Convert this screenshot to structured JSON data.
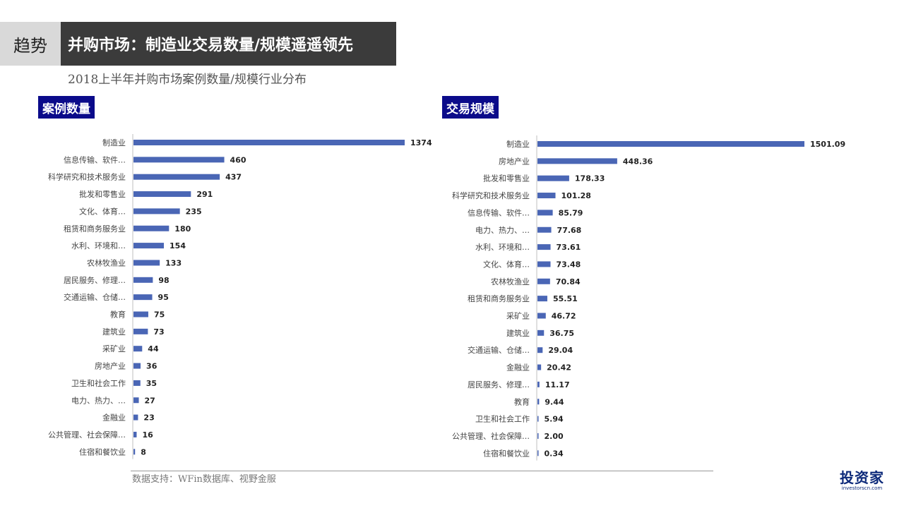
{
  "header": {
    "tag": "趋势",
    "title": "并购市场：制造业交易数量/规模遥遥领先",
    "subtitle": "2018上半年并购市场案例数量/规模行业分布"
  },
  "footer": {
    "source": "数据支持：WFin数据库、视野金服",
    "logo_text": "投资家",
    "logo_sub": "investorscn.com"
  },
  "colors": {
    "bar": "#4a66b5",
    "label_bg": "#0b0b8a",
    "title_bg": "#3b3b3b"
  },
  "chart_data": [
    {
      "type": "bar",
      "orientation": "horizontal",
      "title": "案例数量",
      "categories": [
        "制造业",
        "信息传输、软件…",
        "科学研究和技术服务业",
        "批发和零售业",
        "文化、体育…",
        "租赁和商务服务业",
        "水利、环境和…",
        "农林牧渔业",
        "居民服务、修理…",
        "交通运输、仓储…",
        "教育",
        "建筑业",
        "采矿业",
        "房地产业",
        "卫生和社会工作",
        "电力、热力、…",
        "金融业",
        "公共管理、社会保障…",
        "住宿和餐饮业"
      ],
      "values": [
        1374,
        460,
        437,
        291,
        235,
        180,
        154,
        133,
        98,
        95,
        75,
        73,
        44,
        36,
        35,
        27,
        23,
        16,
        8
      ],
      "value_labels": [
        "1374",
        "460",
        "437",
        "291",
        "235",
        "180",
        "154",
        "133",
        "98",
        "95",
        "75",
        "73",
        "44",
        "36",
        "35",
        "27",
        "23",
        "16",
        "8"
      ],
      "xlim": [
        0,
        1374
      ]
    },
    {
      "type": "bar",
      "orientation": "horizontal",
      "title": "交易规模",
      "categories": [
        "制造业",
        "房地产业",
        "批发和零售业",
        "科学研究和技术服务业",
        "信息传输、软件…",
        "电力、热力、…",
        "水利、环境和…",
        "文化、体育…",
        "农林牧渔业",
        "租赁和商务服务业",
        "采矿业",
        "建筑业",
        "交通运输、仓储…",
        "金融业",
        "居民服务、修理…",
        "教育",
        "卫生和社会工作",
        "公共管理、社会保障…",
        "住宿和餐饮业"
      ],
      "values": [
        1501.09,
        448.36,
        178.33,
        101.28,
        85.79,
        77.68,
        73.61,
        73.48,
        70.84,
        55.51,
        46.72,
        36.75,
        29.04,
        20.42,
        11.17,
        9.44,
        5.94,
        2.0,
        0.34
      ],
      "value_labels": [
        "1501.09",
        "448.36",
        "178.33",
        "101.28",
        "85.79",
        "77.68",
        "73.61",
        "73.48",
        "70.84",
        "55.51",
        "46.72",
        "36.75",
        "29.04",
        "20.42",
        "11.17",
        "9.44",
        "5.94",
        "2.00",
        "0.34"
      ],
      "xlim": [
        0,
        1501.09
      ]
    }
  ]
}
